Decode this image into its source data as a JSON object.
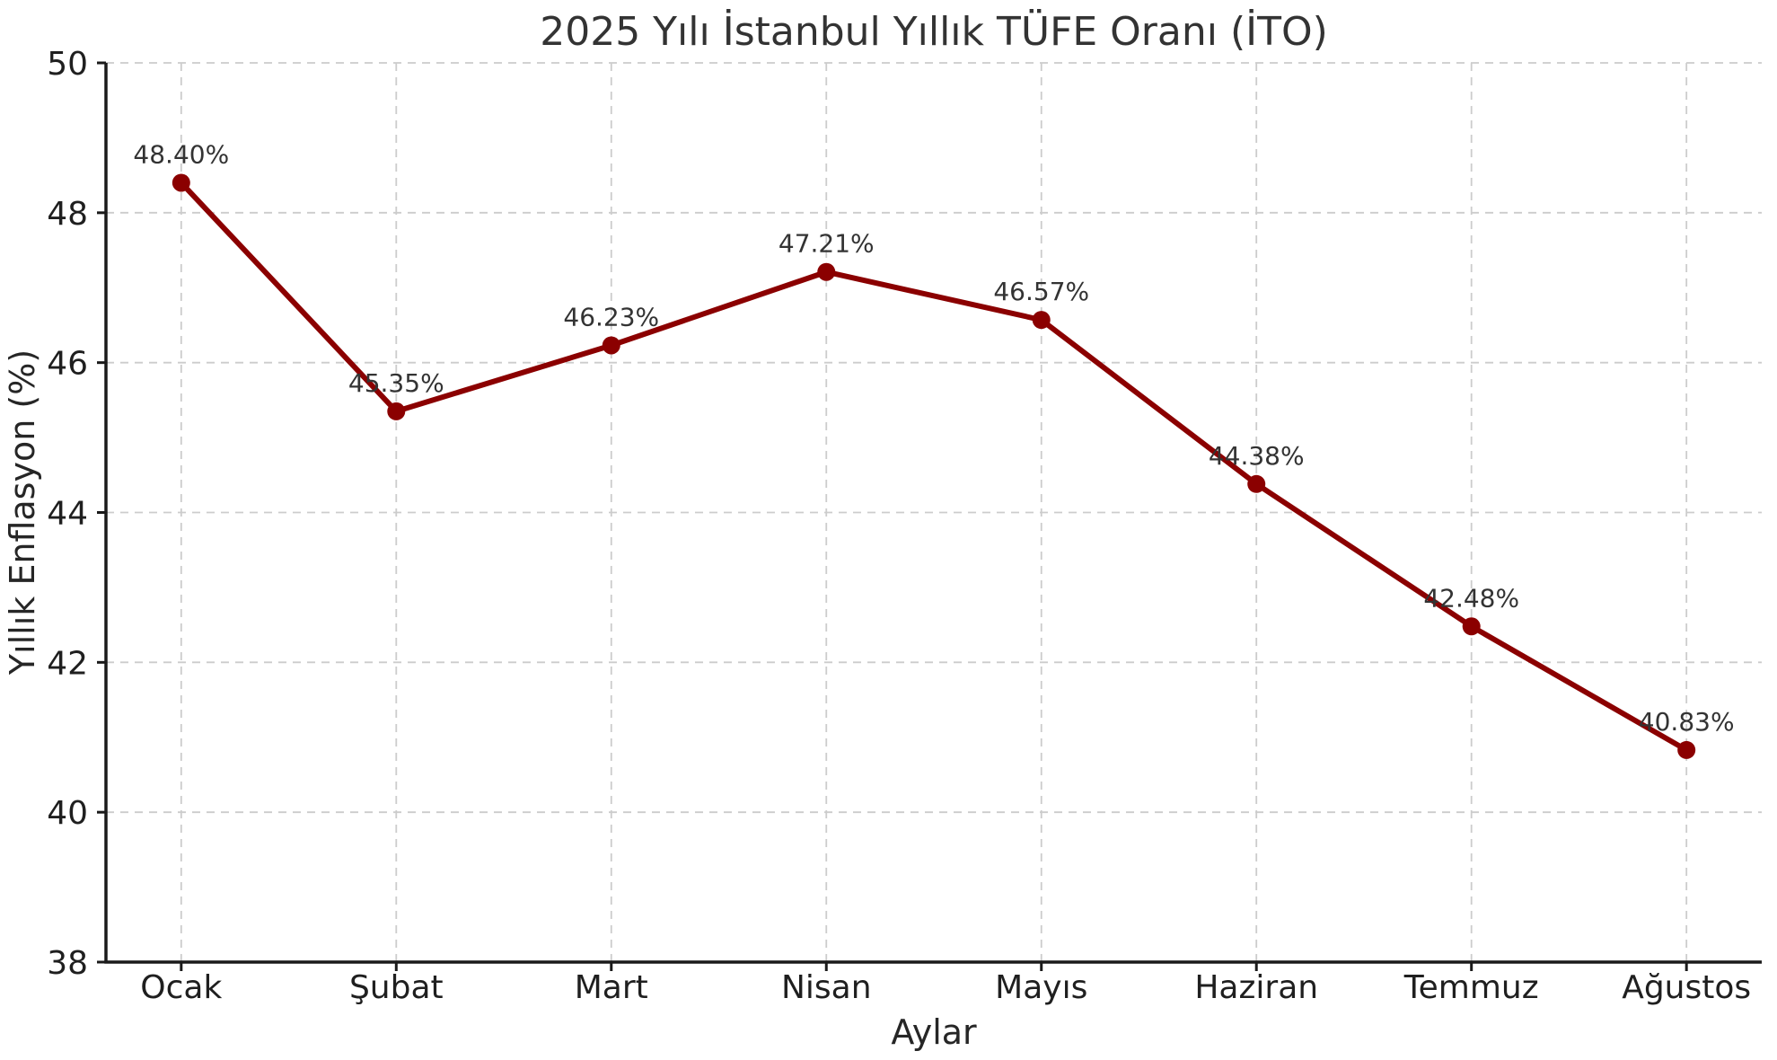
{
  "figure": {
    "background": "#ffffff"
  },
  "chart_data": {
    "type": "line",
    "title": "2025 Yılı İstanbul Yıllık TÜFE Oranı (İTO)",
    "xlabel": "Aylar",
    "ylabel": "Yıllık Enflasyon (%)",
    "categories": [
      "Ocak",
      "Şubat",
      "Mart",
      "Nisan",
      "Mayıs",
      "Haziran",
      "Temmuz",
      "Ağustos"
    ],
    "values": [
      48.4,
      45.35,
      46.23,
      47.21,
      46.57,
      44.38,
      42.48,
      40.83
    ],
    "point_labels": [
      "48.40%",
      "45.35%",
      "46.23%",
      "47.21%",
      "46.57%",
      "44.38%",
      "42.48%",
      "40.83%"
    ],
    "ylim": [
      38,
      50
    ],
    "yticks": [
      38,
      40,
      42,
      44,
      46,
      48,
      50
    ],
    "ytick_labels": [
      "38",
      "40",
      "42",
      "44",
      "46",
      "48",
      "50"
    ],
    "grid": true,
    "grid_style": "dashed",
    "legend": "none",
    "line_color": "#8b0000",
    "marker": "circle"
  },
  "colors": {
    "line": "#8b0000",
    "marker": "#8b0000",
    "grid": "#cccccc",
    "spine": "#1a1a1a",
    "tick": "#1a1a1a",
    "title_text": "#333333",
    "tick_text": "#1f1f1f",
    "annotation_text": "#333333",
    "background": "#ffffff"
  }
}
